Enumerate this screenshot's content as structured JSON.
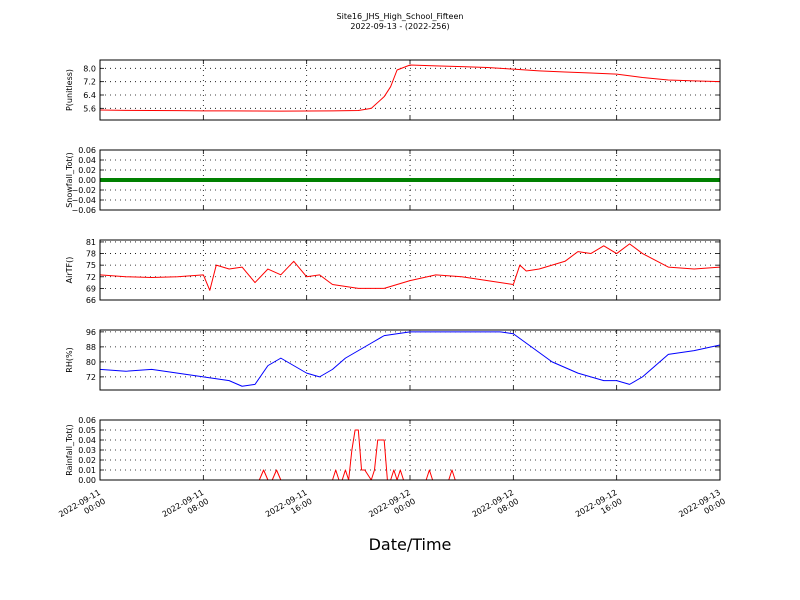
{
  "header": {
    "title_line1": "Site16_JHS_High_School_Fifteen",
    "title_line2": "2022-09-13 - (2022-256)"
  },
  "x_axis": {
    "label": "Date/Time",
    "range": [
      "2022-09-11 00:00",
      "2022-09-13 00:00"
    ],
    "ticks": [
      {
        "value": "2022-09-11 00:00",
        "line1": "2022-09-11",
        "line2": "00:00"
      },
      {
        "value": "2022-09-11 08:00",
        "line1": "2022-09-11",
        "line2": "08:00"
      },
      {
        "value": "2022-09-11 16:00",
        "line1": "2022-09-11",
        "line2": "16:00"
      },
      {
        "value": "2022-09-12 00:00",
        "line1": "2022-09-12",
        "line2": "00:00"
      },
      {
        "value": "2022-09-12 08:00",
        "line1": "2022-09-12",
        "line2": "08:00"
      },
      {
        "value": "2022-09-12 16:00",
        "line1": "2022-09-12",
        "line2": "16:00"
      },
      {
        "value": "2022-09-13 00:00",
        "line1": "2022-09-13",
        "line2": "00:00"
      }
    ]
  },
  "chart_data": [
    {
      "type": "line",
      "ylabel": "P(unitless)",
      "color": "#ff0000",
      "ylim": [
        4.9,
        8.5
      ],
      "yticks": [
        5.6,
        6.4,
        7.2,
        8.0
      ],
      "ytick_labels": [
        "5.6",
        "6.4",
        "7.2",
        "8.0"
      ],
      "grid": true,
      "x": [
        "2022-09-11 00:00",
        "2022-09-11 02:00",
        "2022-09-11 04:00",
        "2022-09-11 06:00",
        "2022-09-11 08:00",
        "2022-09-11 10:00",
        "2022-09-11 12:00",
        "2022-09-11 14:00",
        "2022-09-11 16:00",
        "2022-09-11 18:00",
        "2022-09-11 20:00",
        "2022-09-11 21:00",
        "2022-09-11 22:00",
        "2022-09-11 22:30",
        "2022-09-11 23:00",
        "2022-09-12 00:00",
        "2022-09-12 02:00",
        "2022-09-12 04:00",
        "2022-09-12 06:00",
        "2022-09-12 08:00",
        "2022-09-12 10:00",
        "2022-09-12 12:00",
        "2022-09-12 14:00",
        "2022-09-12 16:00",
        "2022-09-12 18:00",
        "2022-09-12 20:00",
        "2022-09-12 22:00",
        "2022-09-13 00:00"
      ],
      "y": [
        5.5,
        5.48,
        5.47,
        5.46,
        5.45,
        5.45,
        5.44,
        5.43,
        5.44,
        5.45,
        5.47,
        5.6,
        6.3,
        6.9,
        7.9,
        8.2,
        8.15,
        8.1,
        8.05,
        7.95,
        7.85,
        7.78,
        7.72,
        7.65,
        7.45,
        7.3,
        7.25,
        7.2
      ]
    },
    {
      "type": "line",
      "ylabel": "Snowfall_Tot()",
      "color": "#008000",
      "marker": "circle",
      "ylim": [
        -0.06,
        0.06
      ],
      "yticks": [
        -0.06,
        -0.04,
        -0.02,
        0.0,
        0.02,
        0.04,
        0.06
      ],
      "ytick_labels": [
        "−0.06",
        "−0.04",
        "−0.02",
        "0.00",
        "0.02",
        "0.04",
        "0.06"
      ],
      "grid": true,
      "x": [
        "2022-09-11 00:00",
        "2022-09-13 00:00"
      ],
      "y": [
        0.0,
        0.0
      ]
    },
    {
      "type": "line",
      "ylabel": "AirTF()",
      "color": "#ff0000",
      "ylim": [
        66,
        81.5
      ],
      "yticks": [
        66,
        69,
        72,
        75,
        78,
        81
      ],
      "ytick_labels": [
        "66",
        "69",
        "72",
        "75",
        "78",
        "81"
      ],
      "grid": true,
      "x": [
        "2022-09-11 00:00",
        "2022-09-11 02:00",
        "2022-09-11 04:00",
        "2022-09-11 06:00",
        "2022-09-11 08:00",
        "2022-09-11 08:30",
        "2022-09-11 09:00",
        "2022-09-11 10:00",
        "2022-09-11 11:00",
        "2022-09-11 12:00",
        "2022-09-11 13:00",
        "2022-09-11 14:00",
        "2022-09-11 15:00",
        "2022-09-11 16:00",
        "2022-09-11 17:00",
        "2022-09-11 18:00",
        "2022-09-11 20:00",
        "2022-09-11 22:00",
        "2022-09-12 00:00",
        "2022-09-12 02:00",
        "2022-09-12 04:00",
        "2022-09-12 06:00",
        "2022-09-12 08:00",
        "2022-09-12 08:30",
        "2022-09-12 09:00",
        "2022-09-12 10:00",
        "2022-09-12 12:00",
        "2022-09-12 13:00",
        "2022-09-12 14:00",
        "2022-09-12 15:00",
        "2022-09-12 16:00",
        "2022-09-12 17:00",
        "2022-09-12 18:00",
        "2022-09-12 20:00",
        "2022-09-12 22:00",
        "2022-09-13 00:00"
      ],
      "y": [
        72.5,
        72.0,
        71.8,
        72.0,
        72.5,
        68.5,
        75.0,
        74.0,
        74.5,
        70.5,
        74.0,
        72.5,
        76.0,
        72.0,
        72.5,
        70.0,
        69.0,
        69.0,
        71.0,
        72.5,
        72.0,
        71.0,
        70.0,
        75.0,
        73.5,
        74.0,
        76.0,
        78.5,
        78.0,
        80.0,
        78.0,
        80.5,
        78.0,
        74.5,
        74.0,
        74.5
      ]
    },
    {
      "type": "line",
      "ylabel": "RH(%)",
      "color": "#0000ff",
      "ylim": [
        65,
        97
      ],
      "yticks": [
        72,
        80,
        88,
        96
      ],
      "ytick_labels": [
        "72",
        "80",
        "88",
        "96"
      ],
      "grid": true,
      "x": [
        "2022-09-11 00:00",
        "2022-09-11 02:00",
        "2022-09-11 04:00",
        "2022-09-11 06:00",
        "2022-09-11 08:00",
        "2022-09-11 10:00",
        "2022-09-11 11:00",
        "2022-09-11 12:00",
        "2022-09-11 13:00",
        "2022-09-11 14:00",
        "2022-09-11 15:00",
        "2022-09-11 16:00",
        "2022-09-11 17:00",
        "2022-09-11 18:00",
        "2022-09-11 19:00",
        "2022-09-11 20:00",
        "2022-09-11 21:00",
        "2022-09-11 22:00",
        "2022-09-11 23:00",
        "2022-09-12 00:00",
        "2022-09-12 04:00",
        "2022-09-12 07:00",
        "2022-09-12 08:00",
        "2022-09-12 09:00",
        "2022-09-12 11:00",
        "2022-09-12 13:00",
        "2022-09-12 14:00",
        "2022-09-12 15:00",
        "2022-09-12 16:00",
        "2022-09-12 17:00",
        "2022-09-12 18:00",
        "2022-09-12 19:00",
        "2022-09-12 20:00",
        "2022-09-12 22:00",
        "2022-09-13 00:00"
      ],
      "y": [
        76,
        75,
        76,
        74,
        72,
        70,
        67,
        68,
        78,
        82,
        78,
        74,
        72,
        76,
        82,
        86,
        90,
        94,
        95,
        96,
        96,
        96,
        95,
        90,
        80,
        74,
        72,
        70,
        70,
        68,
        72,
        78,
        84,
        86,
        89
      ]
    },
    {
      "type": "line",
      "ylabel": "Rainfall_Tot()",
      "color": "#ff0000",
      "ylim": [
        0.0,
        0.06
      ],
      "yticks": [
        0.0,
        0.01,
        0.02,
        0.03,
        0.04,
        0.05,
        0.06
      ],
      "ytick_labels": [
        "0.00",
        "0.01",
        "0.02",
        "0.03",
        "0.04",
        "0.05",
        "0.06"
      ],
      "grid": true,
      "x": [
        "2022-09-11 00:00",
        "2022-09-11 12:20",
        "2022-09-11 12:40",
        "2022-09-11 13:00",
        "2022-09-11 13:20",
        "2022-09-11 13:40",
        "2022-09-11 14:00",
        "2022-09-11 18:00",
        "2022-09-11 18:15",
        "2022-09-11 18:30",
        "2022-09-11 18:45",
        "2022-09-11 19:00",
        "2022-09-11 19:15",
        "2022-09-11 19:30",
        "2022-09-11 19:45",
        "2022-09-11 20:00",
        "2022-09-11 20:15",
        "2022-09-11 20:30",
        "2022-09-11 21:00",
        "2022-09-11 21:15",
        "2022-09-11 21:30",
        "2022-09-11 22:00",
        "2022-09-11 22:15",
        "2022-09-11 22:30",
        "2022-09-11 22:45",
        "2022-09-11 23:00",
        "2022-09-11 23:15",
        "2022-09-11 23:30",
        "2022-09-11 23:45",
        "2022-09-12 00:00",
        "2022-09-12 01:15",
        "2022-09-12 01:30",
        "2022-09-12 01:45",
        "2022-09-12 03:00",
        "2022-09-12 03:15",
        "2022-09-12 03:30",
        "2022-09-13 00:00"
      ],
      "y": [
        0,
        0,
        0.01,
        0,
        0,
        0.01,
        0,
        0,
        0.01,
        0,
        0,
        0.01,
        0,
        0.03,
        0.05,
        0.05,
        0.01,
        0.01,
        0,
        0.01,
        0.04,
        0.04,
        0,
        0,
        0.01,
        0,
        0.01,
        0,
        0,
        0,
        0,
        0.01,
        0,
        0,
        0.01,
        0,
        0
      ]
    }
  ]
}
